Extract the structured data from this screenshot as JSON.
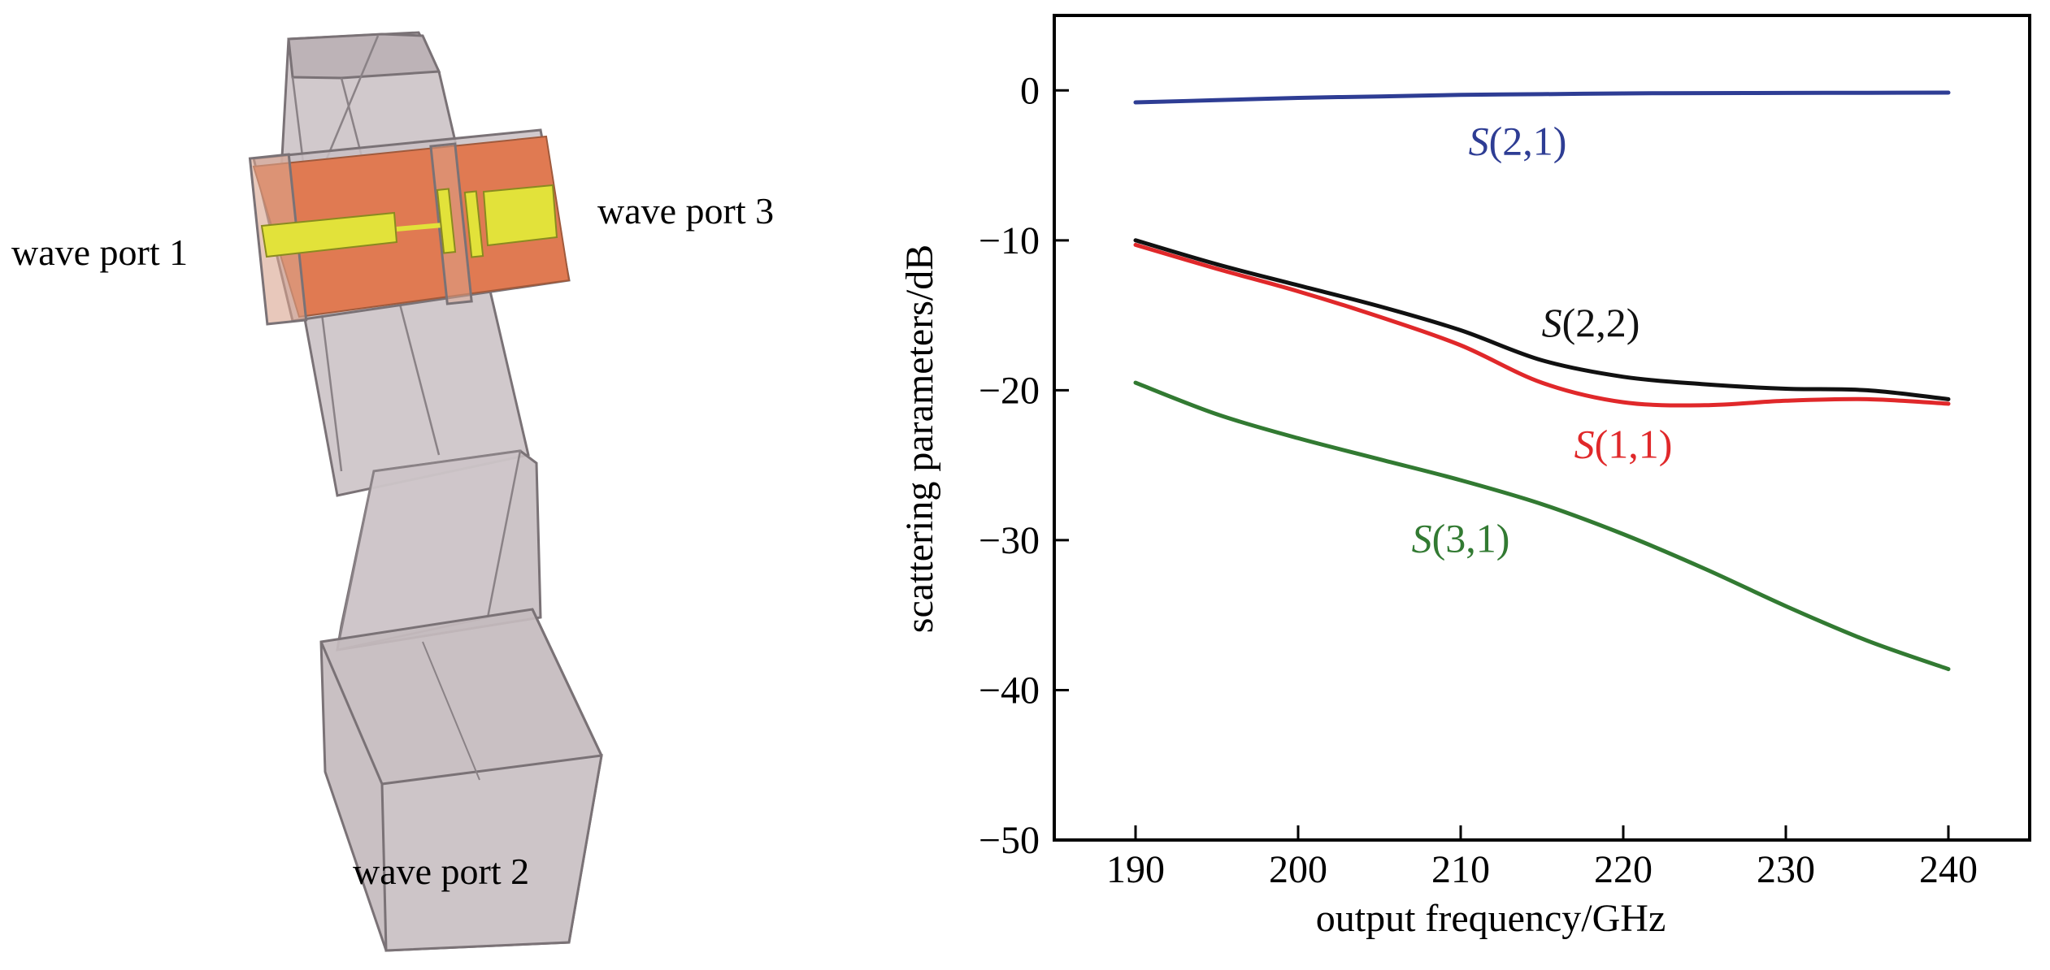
{
  "diagram": {
    "labels": {
      "port1": "wave port 1",
      "port2": "wave port 2",
      "port3": "wave port 3"
    },
    "colors": {
      "waveguide": "#c9c0c3",
      "waveguide_edge": "#7a7276",
      "substrate": "#e07a52",
      "conductor": "#e2e23a"
    }
  },
  "chart_data": {
    "type": "line",
    "title": "",
    "xlabel": "output frequency/GHz",
    "ylabel": "scattering parameters/dB",
    "xlim": [
      185,
      245
    ],
    "ylim": [
      -50,
      5
    ],
    "xticks": [
      190,
      200,
      210,
      220,
      230,
      240
    ],
    "yticks": [
      0,
      -10,
      -20,
      -30,
      -40,
      -50
    ],
    "grid": false,
    "legend": "inline labels",
    "series": [
      {
        "name": "S(2,1)",
        "label_italic": "S",
        "label_rest": "(2,1)",
        "color": "#2e3d94",
        "x": [
          190,
          195,
          200,
          205,
          210,
          215,
          220,
          225,
          230,
          235,
          240
        ],
        "y": [
          -0.8,
          -0.65,
          -0.5,
          -0.4,
          -0.3,
          -0.25,
          -0.2,
          -0.18,
          -0.17,
          -0.16,
          -0.15
        ]
      },
      {
        "name": "S(2,2)",
        "label_italic": "S",
        "label_rest": "(2,2)",
        "color": "#111111",
        "x": [
          190,
          195,
          200,
          205,
          210,
          215,
          220,
          225,
          230,
          235,
          240
        ],
        "y": [
          -10.0,
          -11.6,
          -13.0,
          -14.4,
          -16.0,
          -18.0,
          -19.1,
          -19.6,
          -19.9,
          -20.0,
          -20.6
        ]
      },
      {
        "name": "S(1,1)",
        "label_italic": "S",
        "label_rest": "(1,1)",
        "color": "#e0282a",
        "x": [
          190,
          195,
          200,
          205,
          210,
          215,
          220,
          225,
          230,
          235,
          240
        ],
        "y": [
          -10.3,
          -11.9,
          -13.4,
          -15.1,
          -17.0,
          -19.5,
          -20.8,
          -21.0,
          -20.7,
          -20.6,
          -20.9
        ]
      },
      {
        "name": "S(3,1)",
        "label_italic": "S",
        "label_rest": "(3,1)",
        "color": "#327a32",
        "x": [
          190,
          195,
          200,
          205,
          210,
          215,
          220,
          225,
          230,
          235,
          240
        ],
        "y": [
          -19.5,
          -21.6,
          -23.2,
          -24.6,
          -26.0,
          -27.6,
          -29.6,
          -31.9,
          -34.4,
          -36.7,
          -38.6
        ]
      }
    ]
  }
}
